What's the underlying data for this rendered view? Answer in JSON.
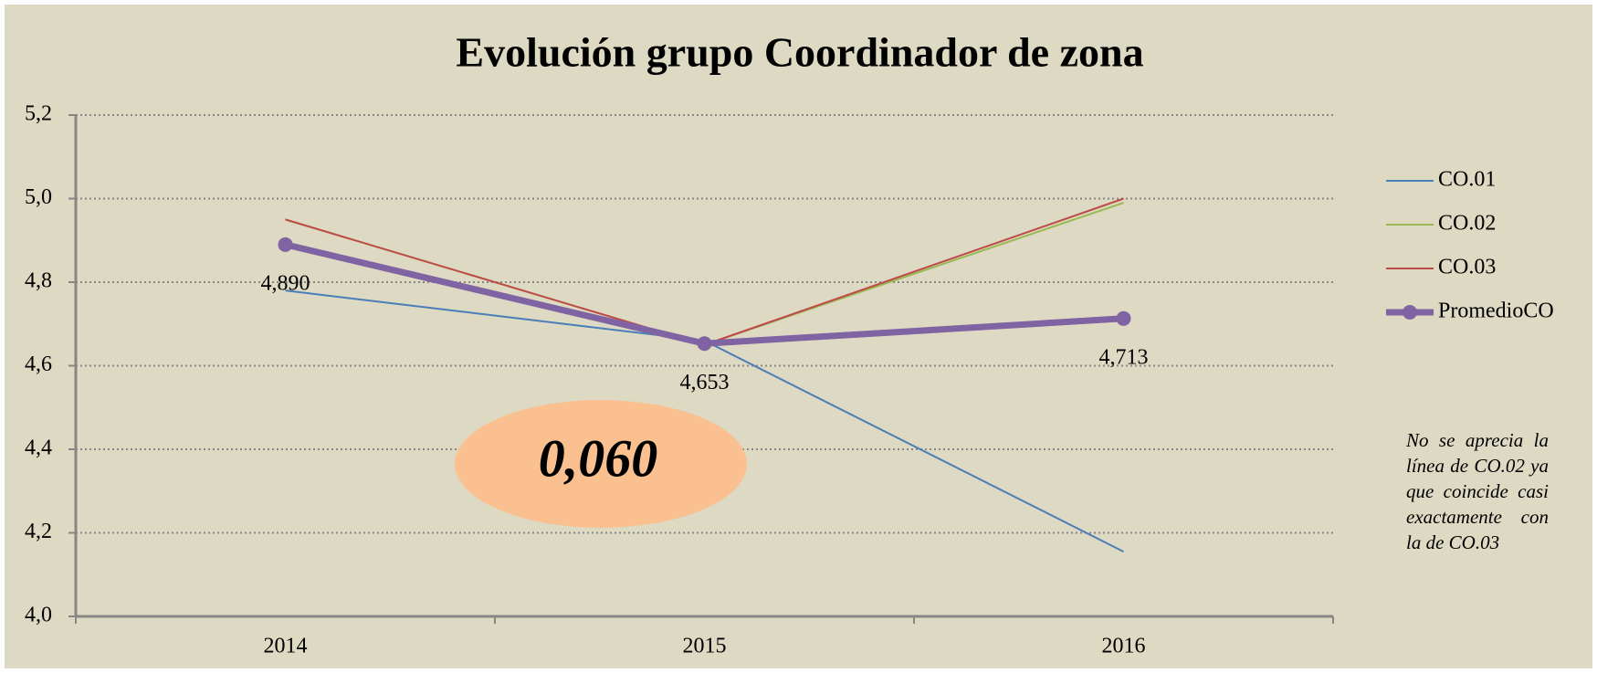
{
  "chart_data": {
    "type": "line",
    "title": "Evolución grupo Coordinador de zona",
    "categories": [
      "2014",
      "2015",
      "2016"
    ],
    "series": [
      {
        "name": "CO.01",
        "color": "#4a7ebb",
        "width": 2,
        "values": [
          4.78,
          4.66,
          4.155
        ]
      },
      {
        "name": "CO.02",
        "color": "#98b954",
        "width": 2,
        "values": [
          4.95,
          4.65,
          4.99
        ]
      },
      {
        "name": "CO.03",
        "color": "#be4b48",
        "width": 2,
        "values": [
          4.95,
          4.65,
          5.0
        ]
      },
      {
        "name": "PromedioCO",
        "color": "#7f63a3",
        "width": 7,
        "marker": true,
        "values": [
          4.89,
          4.653,
          4.713
        ],
        "value_labels": [
          "4,890",
          "4,653",
          "4,713"
        ]
      }
    ],
    "ylim": [
      4.0,
      5.2
    ],
    "yticks": [
      {
        "value": 4.0,
        "label": "4,0"
      },
      {
        "value": 4.2,
        "label": "4,2"
      },
      {
        "value": 4.4,
        "label": "4,4"
      },
      {
        "value": 4.6,
        "label": "4,6"
      },
      {
        "value": 4.8,
        "label": "4,8"
      },
      {
        "value": 5.0,
        "label": "5,0"
      },
      {
        "value": 5.2,
        "label": "5,2"
      }
    ],
    "grid": true,
    "legend": "right",
    "annotation": "0,060",
    "note": "No se aprecia la línea de CO.02 ya que coincide casi exactamente con la de CO.03"
  }
}
